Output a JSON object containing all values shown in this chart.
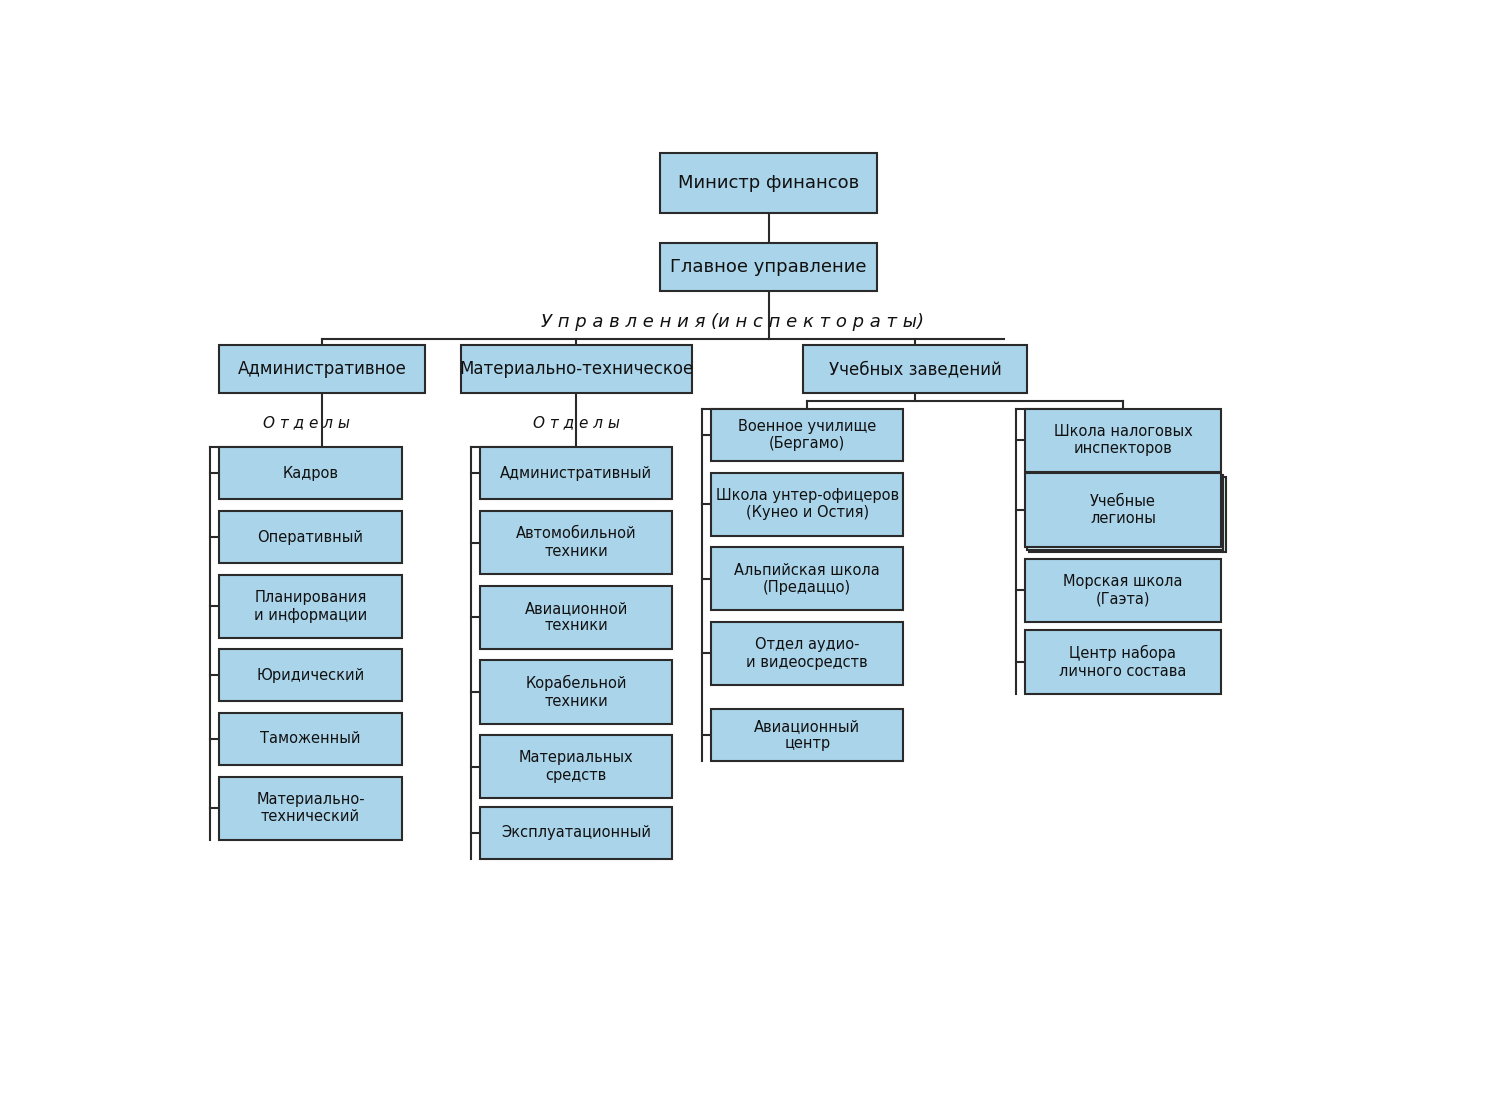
{
  "bg_color": "#ffffff",
  "box_fill": "#aad4ea",
  "box_fill_stack": "#c5e3f0",
  "box_edge": "#2a2a2a",
  "line_color": "#2a2a2a",
  "title_box1": "Министр финансов",
  "title_box2": "Главное управление",
  "label_upravleniya": "У п р а в л е н и я",
  "label_inspektoraty": "(и н с п е к т о р а т ы)",
  "col1_header": "Административное",
  "col2_header": "Материально-техническое",
  "col3_header": "Учебных заведений",
  "label_otdely1": "О т д е л ы",
  "label_otdely2": "О т д е л ы",
  "col1_items": [
    "Кадров",
    "Оперативный",
    "Планирования\nи информации",
    "Юридический",
    "Таможенный",
    "Материально-\nтехнический"
  ],
  "col2_items": [
    "Административный",
    "Автомобильной\nтехники",
    "Авиационной\nтехники",
    "Корабельной\nтехники",
    "Материальных\nсредств",
    "Эксплуатационный"
  ],
  "col3_left_items": [
    "Военное училище\n(Бергамо)",
    "Школа унтер-офицеров\n(Кунео и Остия)",
    "Альпийская школа\n(Предаццо)",
    "Отдел аудио-\nи видеосредств",
    "Авиационный\nцентр"
  ],
  "col3_right_items": [
    "Школа налоговых\nинспекторов",
    "Учебные\nлегионы",
    "Морская школа\n(Гаэта)",
    "Центр набора\nличного состава"
  ],
  "figw": 15.0,
  "figh": 10.95,
  "dpi": 100
}
